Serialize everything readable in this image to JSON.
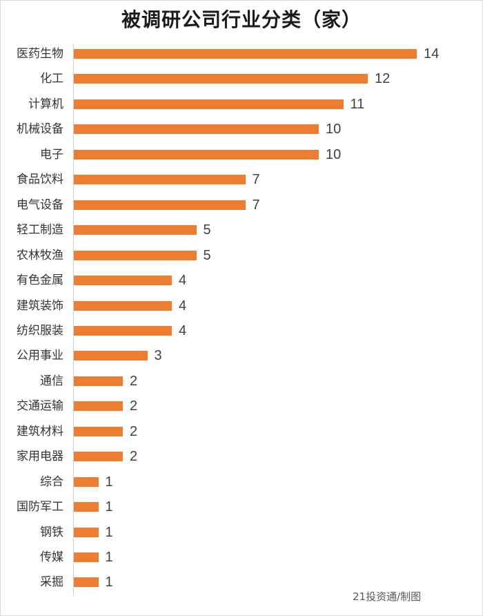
{
  "title": "被调研公司行业分类（家）",
  "credit": "21投资通/制图",
  "colors": {
    "bar": "#ed7d31",
    "axis": "#d0d0d0",
    "text": "#333333"
  },
  "chart_data": {
    "type": "bar",
    "orientation": "horizontal",
    "title": "被调研公司行业分类（家）",
    "xlabel": "",
    "ylabel": "",
    "grid": false,
    "legend": null,
    "data_labels": true,
    "categories": [
      "医药生物",
      "化工",
      "计算机",
      "机械设备",
      "电子",
      "食品饮料",
      "电气设备",
      "轻工制造",
      "农林牧渔",
      "有色金属",
      "建筑装饰",
      "纺织服装",
      "公用事业",
      "通信",
      "交通运输",
      "建筑材料",
      "家用电器",
      "综合",
      "国防军工",
      "钢铁",
      "传媒",
      "采掘"
    ],
    "values": [
      14,
      12,
      11,
      10,
      10,
      7,
      7,
      5,
      5,
      4,
      4,
      4,
      3,
      2,
      2,
      2,
      2,
      1,
      1,
      1,
      1,
      1
    ],
    "xlim": [
      0,
      14
    ],
    "annotations": [
      "21投资通/制图"
    ]
  }
}
